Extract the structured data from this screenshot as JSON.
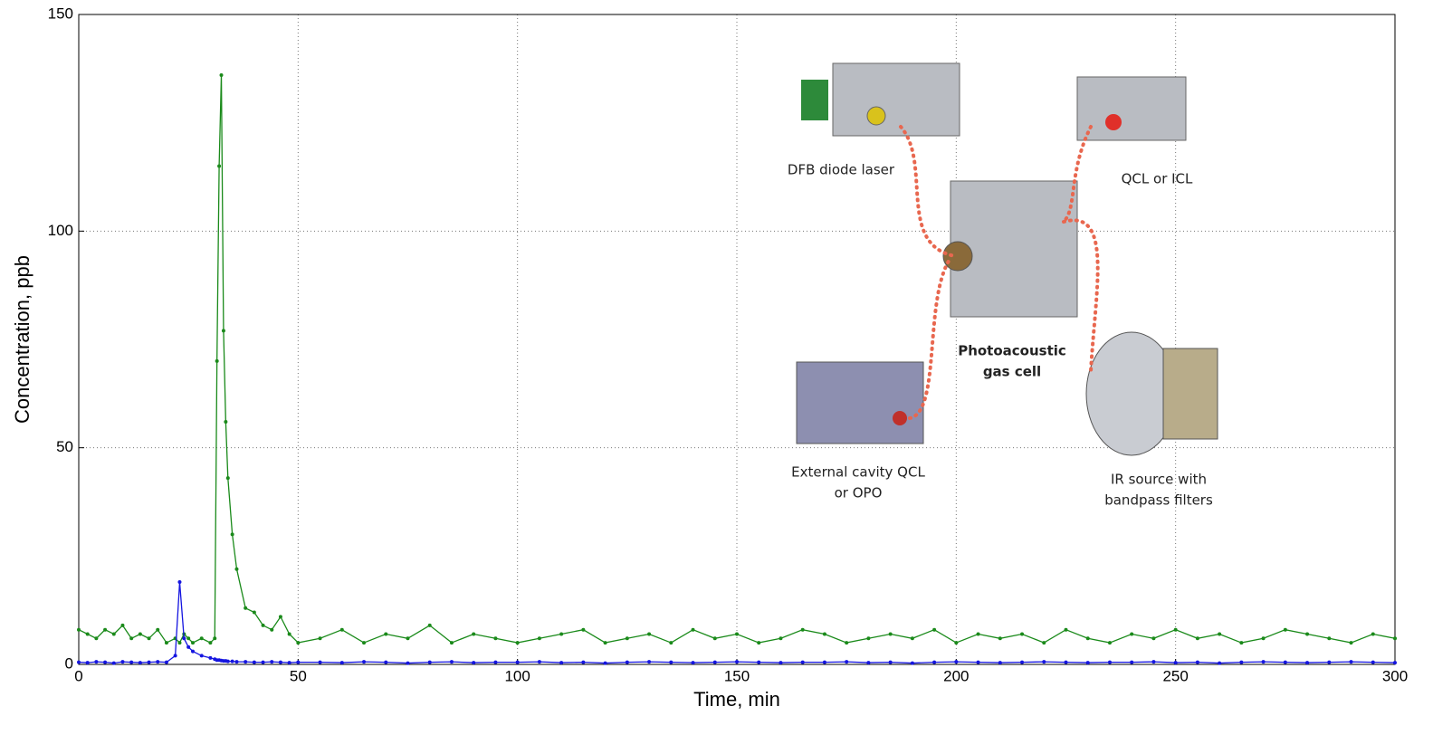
{
  "chart_data": {
    "type": "line",
    "xlabel": "Time, min",
    "ylabel": "Concentration, ppb",
    "x": [
      0,
      2,
      4,
      6,
      8,
      10,
      12,
      14,
      16,
      18,
      20,
      22,
      23,
      24,
      25,
      26,
      28,
      30,
      31,
      31.5,
      32,
      32.5,
      33,
      33.5,
      34,
      35,
      36,
      38,
      40,
      42,
      44,
      46,
      48,
      50,
      55,
      60,
      65,
      70,
      75,
      80,
      85,
      90,
      95,
      100,
      105,
      110,
      115,
      120,
      125,
      130,
      135,
      140,
      145,
      150,
      155,
      160,
      165,
      170,
      175,
      180,
      185,
      190,
      195,
      200,
      205,
      210,
      215,
      220,
      225,
      230,
      235,
      240,
      245,
      250,
      255,
      260,
      265,
      270,
      275,
      280,
      285,
      290,
      295,
      300
    ],
    "series": [
      {
        "color": "#1a8a1a",
        "values": [
          8,
          7,
          6,
          8,
          7,
          9,
          6,
          7,
          6,
          8,
          5,
          6,
          5,
          7,
          6,
          5,
          6,
          5,
          6,
          70,
          115,
          136,
          77,
          56,
          43,
          30,
          22,
          13,
          12,
          9,
          8,
          11,
          7,
          5,
          6,
          8,
          5,
          7,
          6,
          9,
          5,
          7,
          6,
          5,
          6,
          7,
          8,
          5,
          6,
          7,
          5,
          8,
          6,
          7,
          5,
          6,
          8,
          7,
          5,
          6,
          7,
          6,
          8,
          5,
          7,
          6,
          7,
          5,
          8,
          6,
          5,
          7,
          6,
          8,
          6,
          7,
          5,
          6,
          8,
          7,
          6,
          5,
          7,
          6
        ]
      },
      {
        "color": "#1515e0",
        "values": [
          0.5,
          0.4,
          0.6,
          0.5,
          0.3,
          0.6,
          0.5,
          0.4,
          0.5,
          0.6,
          0.5,
          2,
          19,
          6,
          4,
          3,
          2,
          1.5,
          1.2,
          1,
          1,
          0.9,
          0.8,
          0.8,
          0.7,
          0.7,
          0.6,
          0.6,
          0.5,
          0.5,
          0.6,
          0.5,
          0.4,
          0.5,
          0.5,
          0.4,
          0.6,
          0.5,
          0.3,
          0.5,
          0.6,
          0.4,
          0.5,
          0.5,
          0.6,
          0.4,
          0.5,
          0.3,
          0.5,
          0.6,
          0.5,
          0.4,
          0.5,
          0.6,
          0.5,
          0.4,
          0.5,
          0.5,
          0.6,
          0.4,
          0.5,
          0.3,
          0.5,
          0.6,
          0.5,
          0.4,
          0.5,
          0.6,
          0.5,
          0.4,
          0.5,
          0.5,
          0.6,
          0.4,
          0.5,
          0.3,
          0.5,
          0.6,
          0.5,
          0.4,
          0.5,
          0.6,
          0.5,
          0.4
        ]
      }
    ],
    "xlim": [
      0,
      300
    ],
    "xticks": [
      0,
      50,
      100,
      150,
      200,
      250,
      300
    ],
    "ylim": [
      0,
      150
    ],
    "yticks": [
      0,
      50,
      100,
      150
    ],
    "grid": true,
    "annotations": [
      {
        "lines": [
          "DFB diode laser"
        ]
      },
      {
        "lines": [
          "QCL or ICL"
        ]
      },
      {
        "lines": [
          "Photoacoustic",
          "gas cell"
        ]
      },
      {
        "lines": [
          "External cavity QCL",
          "or OPO"
        ]
      },
      {
        "lines": [
          "IR source with",
          "bandpass filters"
        ]
      }
    ]
  }
}
